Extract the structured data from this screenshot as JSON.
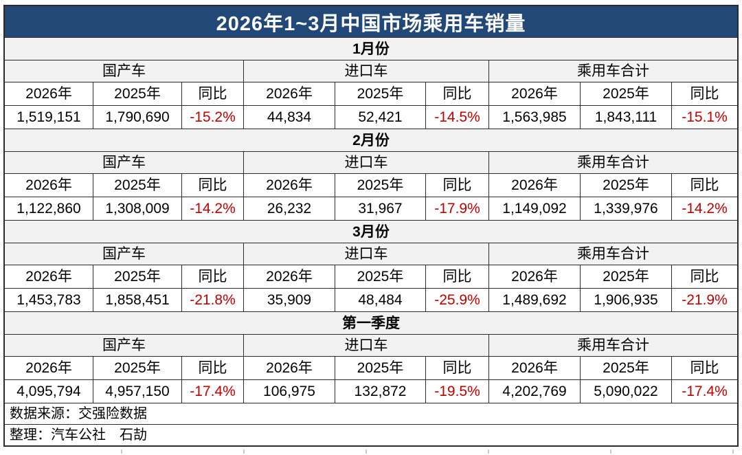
{
  "title": "2026年1~3月中国市场乘用车销量",
  "labels": {
    "domestic": "国产车",
    "imported": "进口车",
    "total": "乘用车合计",
    "y2026": "2026年",
    "y2025": "2025年",
    "yoy": "同比"
  },
  "sections": [
    {
      "period": "1月份",
      "domestic": {
        "v2026": "1,519,151",
        "v2025": "1,790,690",
        "yoy": "-15.2%"
      },
      "imported": {
        "v2026": "44,834",
        "v2025": "52,421",
        "yoy": "-14.5%"
      },
      "total": {
        "v2026": "1,563,985",
        "v2025": "1,843,111",
        "yoy": "-15.1%"
      }
    },
    {
      "period": "2月份",
      "domestic": {
        "v2026": "1,122,860",
        "v2025": "1,308,009",
        "yoy": "-14.2%"
      },
      "imported": {
        "v2026": "26,232",
        "v2025": "31,967",
        "yoy": "-17.9%"
      },
      "total": {
        "v2026": "1,149,092",
        "v2025": "1,339,976",
        "yoy": "-14.2%"
      }
    },
    {
      "period": "3月份",
      "domestic": {
        "v2026": "1,453,783",
        "v2025": "1,858,451",
        "yoy": "-21.8%"
      },
      "imported": {
        "v2026": "35,909",
        "v2025": "48,484",
        "yoy": "-25.9%"
      },
      "total": {
        "v2026": "1,489,692",
        "v2025": "1,906,935",
        "yoy": "-21.9%"
      }
    },
    {
      "period": "第一季度",
      "domestic": {
        "v2026": "4,095,794",
        "v2025": "4,957,150",
        "yoy": "-17.4%"
      },
      "imported": {
        "v2026": "106,975",
        "v2025": "132,872",
        "yoy": "-19.5%"
      },
      "total": {
        "v2026": "4,202,769",
        "v2025": "5,090,022",
        "yoy": "-17.4%"
      }
    }
  ],
  "footer": {
    "source": "数据来源：交强险数据",
    "compiled_by": "整理：汽车公社　石劼"
  },
  "colors": {
    "title_bg": "#214876",
    "title_text": "#FFFFFF",
    "negative": "#C00000",
    "band_bg": "#F2F2F2",
    "border": "#2B2B2B"
  },
  "chart_data": {
    "type": "table",
    "title": "2026年1~3月中国市场乘用车销量",
    "periods": [
      "1月份",
      "2月份",
      "3月份",
      "第一季度"
    ],
    "groups": [
      "国产车",
      "进口车",
      "乘用车合计"
    ],
    "columns": [
      "2026年",
      "2025年",
      "同比"
    ],
    "rows": [
      {
        "period": "1月份",
        "domestic_2026": 1519151,
        "domestic_2025": 1790690,
        "domestic_yoy_pct": -15.2,
        "imported_2026": 44834,
        "imported_2025": 52421,
        "imported_yoy_pct": -14.5,
        "total_2026": 1563985,
        "total_2025": 1843111,
        "total_yoy_pct": -15.1
      },
      {
        "period": "2月份",
        "domestic_2026": 1122860,
        "domestic_2025": 1308009,
        "domestic_yoy_pct": -14.2,
        "imported_2026": 26232,
        "imported_2025": 31967,
        "imported_yoy_pct": -17.9,
        "total_2026": 1149092,
        "total_2025": 1339976,
        "total_yoy_pct": -14.2
      },
      {
        "period": "3月份",
        "domestic_2026": 1453783,
        "domestic_2025": 1858451,
        "domestic_yoy_pct": -21.8,
        "imported_2026": 35909,
        "imported_2025": 48484,
        "imported_yoy_pct": -25.9,
        "total_2026": 1489692,
        "total_2025": 1906935,
        "total_yoy_pct": -21.9
      },
      {
        "period": "第一季度",
        "domestic_2026": 4095794,
        "domestic_2025": 4957150,
        "domestic_yoy_pct": -17.4,
        "imported_2026": 106975,
        "imported_2025": 132872,
        "imported_yoy_pct": -19.5,
        "total_2026": 4202769,
        "total_2025": 5090022,
        "total_yoy_pct": -17.4
      }
    ],
    "footer_source": "数据来源：交强险数据",
    "footer_compiled_by": "整理：汽车公社 石劼"
  }
}
